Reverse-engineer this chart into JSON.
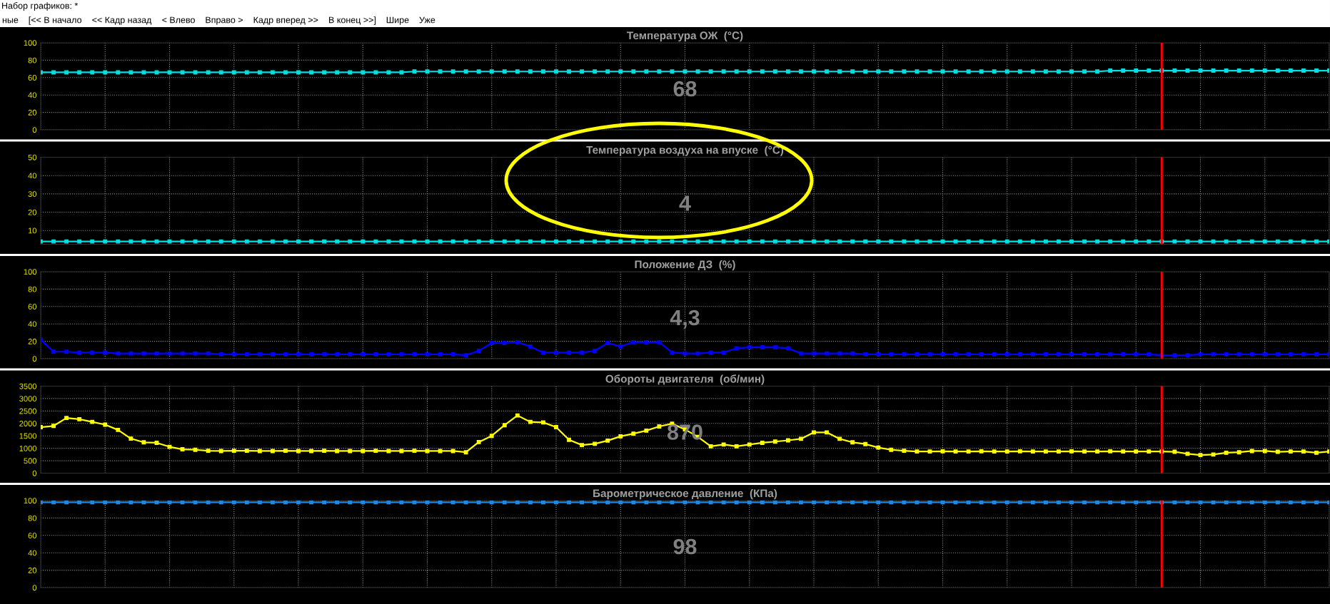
{
  "chart_data": [
    {
      "type": "line",
      "title": "Температура ОЖ  (°C)",
      "annotations": [
        "68",
        "Набор графиков: *",
        "ные",
        "[<< В начало",
        "<< Кадр назад",
        "< Влево",
        "Вправо >",
        "Кадр вперед >>",
        "В конец >>]",
        "Шире",
        "Уже"
      ],
      "categories": [
        null,
        null,
        null,
        null,
        null,
        null,
        null,
        null,
        null,
        null,
        null,
        null,
        null,
        null,
        null,
        null,
        null,
        null,
        null,
        null,
        null,
        null,
        null,
        null,
        null,
        null,
        null,
        null,
        null,
        null,
        null,
        null,
        null,
        null,
        null,
        null,
        null,
        null,
        null,
        null,
        null,
        null,
        null,
        null,
        null,
        null,
        null,
        null,
        null,
        null,
        null,
        null,
        null,
        null,
        null,
        null,
        null,
        null,
        null,
        null,
        null,
        null,
        null,
        null,
        null,
        null,
        null,
        null,
        null,
        null,
        null,
        null,
        null,
        null,
        null,
        null,
        null,
        null,
        null,
        null,
        null,
        null,
        null,
        null,
        null,
        null,
        null,
        null,
        null,
        null,
        null,
        null,
        null,
        null,
        null,
        null,
        null,
        null,
        null,
        null,
        null
      ],
      "series": [
        {
          "color": "#00e0e0",
          "values": [
            66,
            66,
            66,
            66,
            66,
            66,
            66,
            66,
            66,
            66,
            66,
            66,
            66,
            66,
            66,
            66,
            66,
            66,
            66,
            66,
            66,
            66,
            66,
            66,
            66,
            66,
            66,
            66,
            66,
            67,
            67,
            67,
            67,
            67,
            67,
            67,
            67,
            67,
            67,
            67,
            67,
            67,
            67,
            67,
            67,
            67,
            67,
            67,
            67,
            67,
            67,
            67,
            67,
            67,
            67,
            67,
            67,
            67,
            67,
            67,
            67,
            67,
            67,
            67,
            67,
            67,
            67,
            67,
            67,
            67,
            67,
            67,
            67,
            67,
            67,
            67,
            67,
            67,
            67,
            67,
            67,
            67,
            67,
            68,
            68,
            68,
            68,
            68,
            68,
            68,
            68,
            68,
            68,
            68,
            68,
            68,
            68,
            68,
            68,
            68,
            68
          ]
        }
      ],
      "ylim": [
        0,
        100
      ],
      "yticks": [
        0,
        20,
        40,
        60,
        80,
        100
      ],
      "grid": true,
      "marker": "square",
      "tick_labels": "y"
    },
    {
      "type": "line",
      "title": "Температура воздуха на впуске  (°C)",
      "annotations": [
        "4"
      ],
      "categories": [
        null,
        null,
        null,
        null,
        null,
        null,
        null,
        null,
        null,
        null,
        null,
        null,
        null,
        null,
        null,
        null,
        null,
        null,
        null,
        null,
        null,
        null,
        null,
        null,
        null,
        null,
        null,
        null,
        null,
        null,
        null,
        null,
        null,
        null,
        null,
        null,
        null,
        null,
        null,
        null,
        null,
        null,
        null,
        null,
        null,
        null,
        null,
        null,
        null,
        null,
        null,
        null,
        null,
        null,
        null,
        null,
        null,
        null,
        null,
        null,
        null,
        null,
        null,
        null,
        null,
        null,
        null,
        null,
        null,
        null,
        null,
        null,
        null,
        null,
        null,
        null,
        null,
        null,
        null,
        null,
        null,
        null,
        null,
        null,
        null,
        null,
        null,
        null,
        null,
        null,
        null,
        null,
        null,
        null,
        null,
        null,
        null,
        null,
        null,
        null,
        null
      ],
      "series": [
        {
          "color": "#00e0e0",
          "values": [
            4,
            4,
            4,
            4,
            4,
            4,
            4,
            4,
            4,
            4,
            4,
            4,
            4,
            4,
            4,
            4,
            4,
            4,
            4,
            4,
            4,
            4,
            4,
            4,
            4,
            4,
            4,
            4,
            4,
            4,
            4,
            4,
            4,
            4,
            4,
            4,
            4,
            4,
            4,
            4,
            4,
            4,
            4,
            4,
            4,
            4,
            4,
            4,
            4,
            4,
            4,
            4,
            4,
            4,
            4,
            4,
            4,
            4,
            4,
            4,
            4,
            4,
            4,
            4,
            4,
            4,
            4,
            4,
            4,
            4,
            4,
            4,
            4,
            4,
            4,
            4,
            4,
            4,
            4,
            4,
            4,
            4,
            4,
            4,
            4,
            4,
            4,
            4,
            4,
            4,
            4,
            4,
            4,
            4,
            4,
            4,
            4,
            4,
            4,
            4,
            4
          ]
        }
      ],
      "ylim": [
        2.5,
        50
      ],
      "yticks": [
        10,
        20,
        30,
        40,
        50
      ],
      "grid": true,
      "marker": "square",
      "tick_labels": "y"
    },
    {
      "type": "line",
      "title": "Положение ДЗ  (%)",
      "annotations": [
        "4,3"
      ],
      "categories": [
        null,
        null,
        null,
        null,
        null,
        null,
        null,
        null,
        null,
        null,
        null,
        null,
        null,
        null,
        null,
        null,
        null,
        null,
        null,
        null,
        null,
        null,
        null,
        null,
        null,
        null,
        null,
        null,
        null,
        null,
        null,
        null,
        null,
        null,
        null,
        null,
        null,
        null,
        null,
        null,
        null,
        null,
        null,
        null,
        null,
        null,
        null,
        null,
        null,
        null,
        null,
        null,
        null,
        null,
        null,
        null,
        null,
        null,
        null,
        null,
        null,
        null,
        null,
        null,
        null,
        null,
        null,
        null,
        null,
        null,
        null,
        null,
        null,
        null,
        null,
        null,
        null,
        null,
        null,
        null,
        null,
        null,
        null,
        null,
        null,
        null,
        null,
        null,
        null,
        null,
        null,
        null,
        null,
        null,
        null,
        null,
        null,
        null,
        null,
        null,
        null
      ],
      "series": [
        {
          "color": "#0000ff",
          "values": [
            22,
            8,
            8,
            7,
            7,
            7,
            6,
            6,
            6,
            6,
            6,
            6,
            6,
            6,
            5,
            5,
            5,
            5,
            5,
            5,
            5,
            5,
            5,
            5,
            5,
            5,
            5,
            5,
            5,
            5,
            5,
            5,
            5,
            4,
            9,
            18,
            18,
            19,
            14,
            7,
            7,
            7,
            7,
            9,
            18,
            14,
            19,
            19,
            19,
            7,
            6,
            6,
            7,
            7,
            12,
            13,
            13,
            13,
            12,
            6,
            6,
            6,
            6,
            6,
            5,
            5,
            5,
            5,
            5,
            5,
            5,
            5,
            5,
            5,
            5,
            5,
            5,
            5,
            5,
            5,
            5,
            5,
            5,
            5,
            5,
            5,
            5,
            4,
            4,
            4,
            5,
            5,
            5,
            5,
            5,
            5,
            5,
            5,
            5,
            5,
            5
          ]
        }
      ],
      "ylim": [
        0,
        100
      ],
      "yticks": [
        0,
        20,
        40,
        60,
        80,
        100
      ],
      "grid": true,
      "marker": "square",
      "tick_labels": "y"
    },
    {
      "type": "line",
      "title": "Обороты двигателя  (об/мин)",
      "annotations": [
        "870"
      ],
      "categories": [
        null,
        null,
        null,
        null,
        null,
        null,
        null,
        null,
        null,
        null,
        null,
        null,
        null,
        null,
        null,
        null,
        null,
        null,
        null,
        null,
        null,
        null,
        null,
        null,
        null,
        null,
        null,
        null,
        null,
        null,
        null,
        null,
        null,
        null,
        null,
        null,
        null,
        null,
        null,
        null,
        null,
        null,
        null,
        null,
        null,
        null,
        null,
        null,
        null,
        null,
        null,
        null,
        null,
        null,
        null,
        null,
        null,
        null,
        null,
        null,
        null,
        null,
        null,
        null,
        null,
        null,
        null,
        null,
        null,
        null,
        null,
        null,
        null,
        null,
        null,
        null,
        null,
        null,
        null,
        null,
        null,
        null,
        null,
        null,
        null,
        null,
        null,
        null,
        null,
        null,
        null,
        null,
        null,
        null,
        null,
        null,
        null,
        null,
        null,
        null,
        null
      ],
      "series": [
        {
          "color": "#ffff00",
          "values": [
            1850,
            1900,
            2220,
            2170,
            2060,
            1950,
            1740,
            1390,
            1240,
            1220,
            1060,
            960,
            940,
            900,
            890,
            900,
            900,
            890,
            890,
            900,
            890,
            890,
            900,
            890,
            890,
            890,
            900,
            890,
            890,
            900,
            890,
            890,
            890,
            840,
            1250,
            1500,
            1930,
            2320,
            2060,
            2040,
            1850,
            1340,
            1130,
            1180,
            1310,
            1480,
            1590,
            1710,
            1880,
            1990,
            1760,
            1460,
            1080,
            1150,
            1080,
            1150,
            1220,
            1270,
            1320,
            1380,
            1640,
            1640,
            1380,
            1240,
            1170,
            1030,
            940,
            900,
            870,
            870,
            880,
            870,
            870,
            880,
            870,
            870,
            880,
            870,
            870,
            870,
            880,
            870,
            870,
            880,
            870,
            870,
            870,
            870,
            860,
            780,
            730,
            750,
            820,
            840,
            890,
            890,
            860,
            870,
            870,
            820,
            870
          ]
        }
      ],
      "ylim": [
        0,
        3500
      ],
      "yticks": [
        0,
        500,
        1000,
        1500,
        2000,
        2500,
        3000,
        3500
      ],
      "grid": true,
      "marker": "square",
      "tick_labels": "y"
    },
    {
      "type": "line",
      "title": "Барометрическое давление  (КПа)",
      "annotations": [
        "98"
      ],
      "categories": [
        null,
        null,
        null,
        null,
        null,
        null,
        null,
        null,
        null,
        null,
        null,
        null,
        null,
        null,
        null,
        null,
        null,
        null,
        null,
        null,
        null,
        null,
        null,
        null,
        null,
        null,
        null,
        null,
        null,
        null,
        null,
        null,
        null,
        null,
        null,
        null,
        null,
        null,
        null,
        null,
        null,
        null,
        null,
        null,
        null,
        null,
        null,
        null,
        null,
        null,
        null,
        null,
        null,
        null,
        null,
        null,
        null,
        null,
        null,
        null,
        null,
        null,
        null,
        null,
        null,
        null,
        null,
        null,
        null,
        null,
        null,
        null,
        null,
        null,
        null,
        null,
        null,
        null,
        null,
        null,
        null,
        null,
        null,
        null,
        null,
        null,
        null,
        null,
        null,
        null,
        null,
        null,
        null,
        null,
        null,
        null,
        null,
        null,
        null,
        null,
        null
      ],
      "series": [
        {
          "color": "#1e88e5",
          "values": [
            98,
            98,
            98,
            98,
            98,
            98,
            98,
            98,
            98,
            98,
            98,
            98,
            98,
            98,
            98,
            98,
            98,
            98,
            98,
            98,
            98,
            98,
            98,
            98,
            98,
            98,
            98,
            98,
            98,
            98,
            98,
            98,
            98,
            98,
            98,
            98,
            98,
            98,
            98,
            98,
            98,
            98,
            98,
            98,
            98,
            98,
            98,
            98,
            98,
            98,
            98,
            98,
            98,
            98,
            98,
            98,
            98,
            98,
            98,
            98,
            98,
            98,
            98,
            98,
            98,
            98,
            98,
            98,
            98,
            98,
            98,
            98,
            98,
            98,
            98,
            98,
            98,
            98,
            98,
            98,
            98,
            98,
            98,
            98,
            98,
            98,
            98,
            98,
            98,
            98,
            98,
            98,
            98,
            98,
            98,
            98,
            98,
            98,
            98,
            98,
            98
          ]
        }
      ],
      "ylim": [
        0,
        100
      ],
      "yticks": [
        0,
        20,
        40,
        60,
        80,
        100
      ],
      "grid": true,
      "marker": "square",
      "tick_labels": "y"
    }
  ]
}
